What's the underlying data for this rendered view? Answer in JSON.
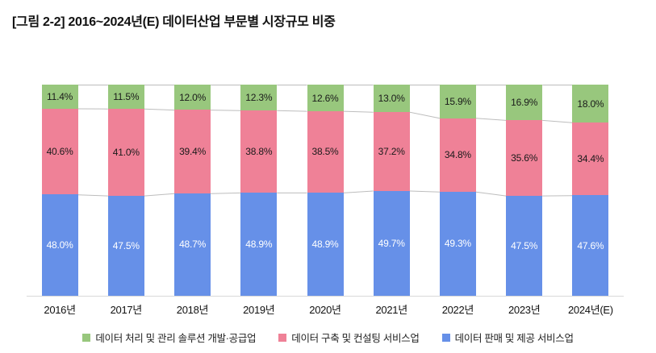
{
  "title": "[그림 2-2] 2016~2024년(E) 데이터산업 부문별 시장규모 비중",
  "chart_data": {
    "type": "bar",
    "subtype": "stacked-100-percent-column",
    "title": "[그림 2-2] 2016~2024년(E) 데이터산업 부문별 시장규모 비중",
    "xlabel": "",
    "ylabel": "",
    "unit": "%",
    "ylim": [
      0,
      100
    ],
    "grid": false,
    "legend_position": "bottom",
    "categories": [
      "2016년",
      "2017년",
      "2018년",
      "2019년",
      "2020년",
      "2021년",
      "2022년",
      "2023년",
      "2024년(E)"
    ],
    "series": [
      {
        "name": "데이터 처리 및 관리 솔루션 개발·공급업",
        "color": "#98c77d",
        "label_color": "#1a1a1a",
        "values": [
          11.4,
          11.5,
          12.0,
          12.3,
          12.6,
          13.0,
          15.9,
          16.9,
          18.0
        ]
      },
      {
        "name": "데이터 구축 및 컨설팅 서비스업",
        "color": "#ef8197",
        "label_color": "#1a1a1a",
        "values": [
          40.6,
          41.0,
          39.4,
          38.8,
          38.5,
          37.2,
          34.8,
          35.6,
          34.4
        ]
      },
      {
        "name": "데이터 판매 및 제공 서비스업",
        "color": "#6690e8",
        "label_color": "#ffffff",
        "values": [
          48.0,
          47.5,
          48.7,
          48.9,
          48.9,
          49.7,
          49.3,
          47.5,
          47.6
        ]
      }
    ],
    "stack_order": "top-to-bottom matches series order",
    "value_label_format": "0.0%",
    "connector_line_color": "#bdbdbd",
    "axis_line_color": "#d9d9d9"
  }
}
